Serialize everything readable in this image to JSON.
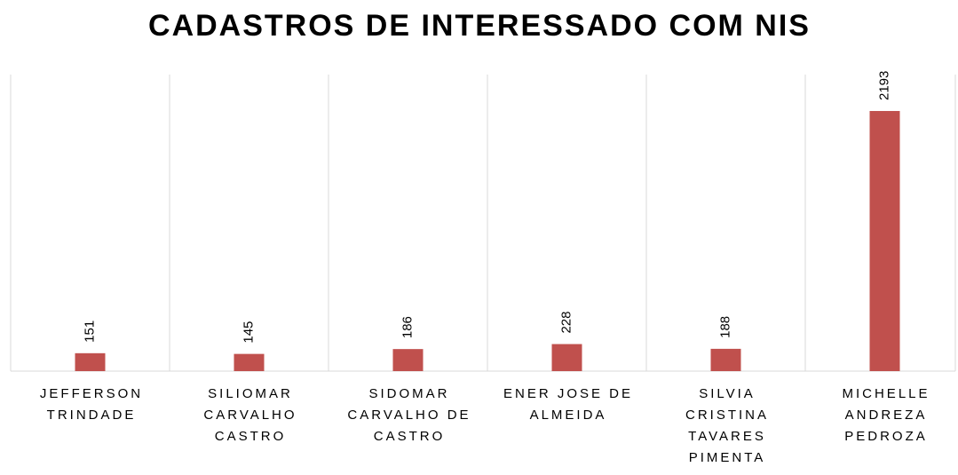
{
  "chart_data": {
    "type": "bar",
    "title": "CADASTROS DE INTERESSADO COM NIS",
    "categories": [
      "JEFFERSON TRINDADE",
      "SILIOMAR CARVALHO CASTRO",
      "SIDOMAR CARVALHO DE CASTRO",
      "ENER JOSE DE ALMEIDA",
      "SILVIA CRISTINA TAVARES PIMENTA",
      "MICHELLE ANDREZA PEDROZA"
    ],
    "values": [
      151,
      145,
      186,
      228,
      188,
      2193
    ],
    "color": "#c0504d",
    "ylim": [
      0,
      2500
    ]
  }
}
